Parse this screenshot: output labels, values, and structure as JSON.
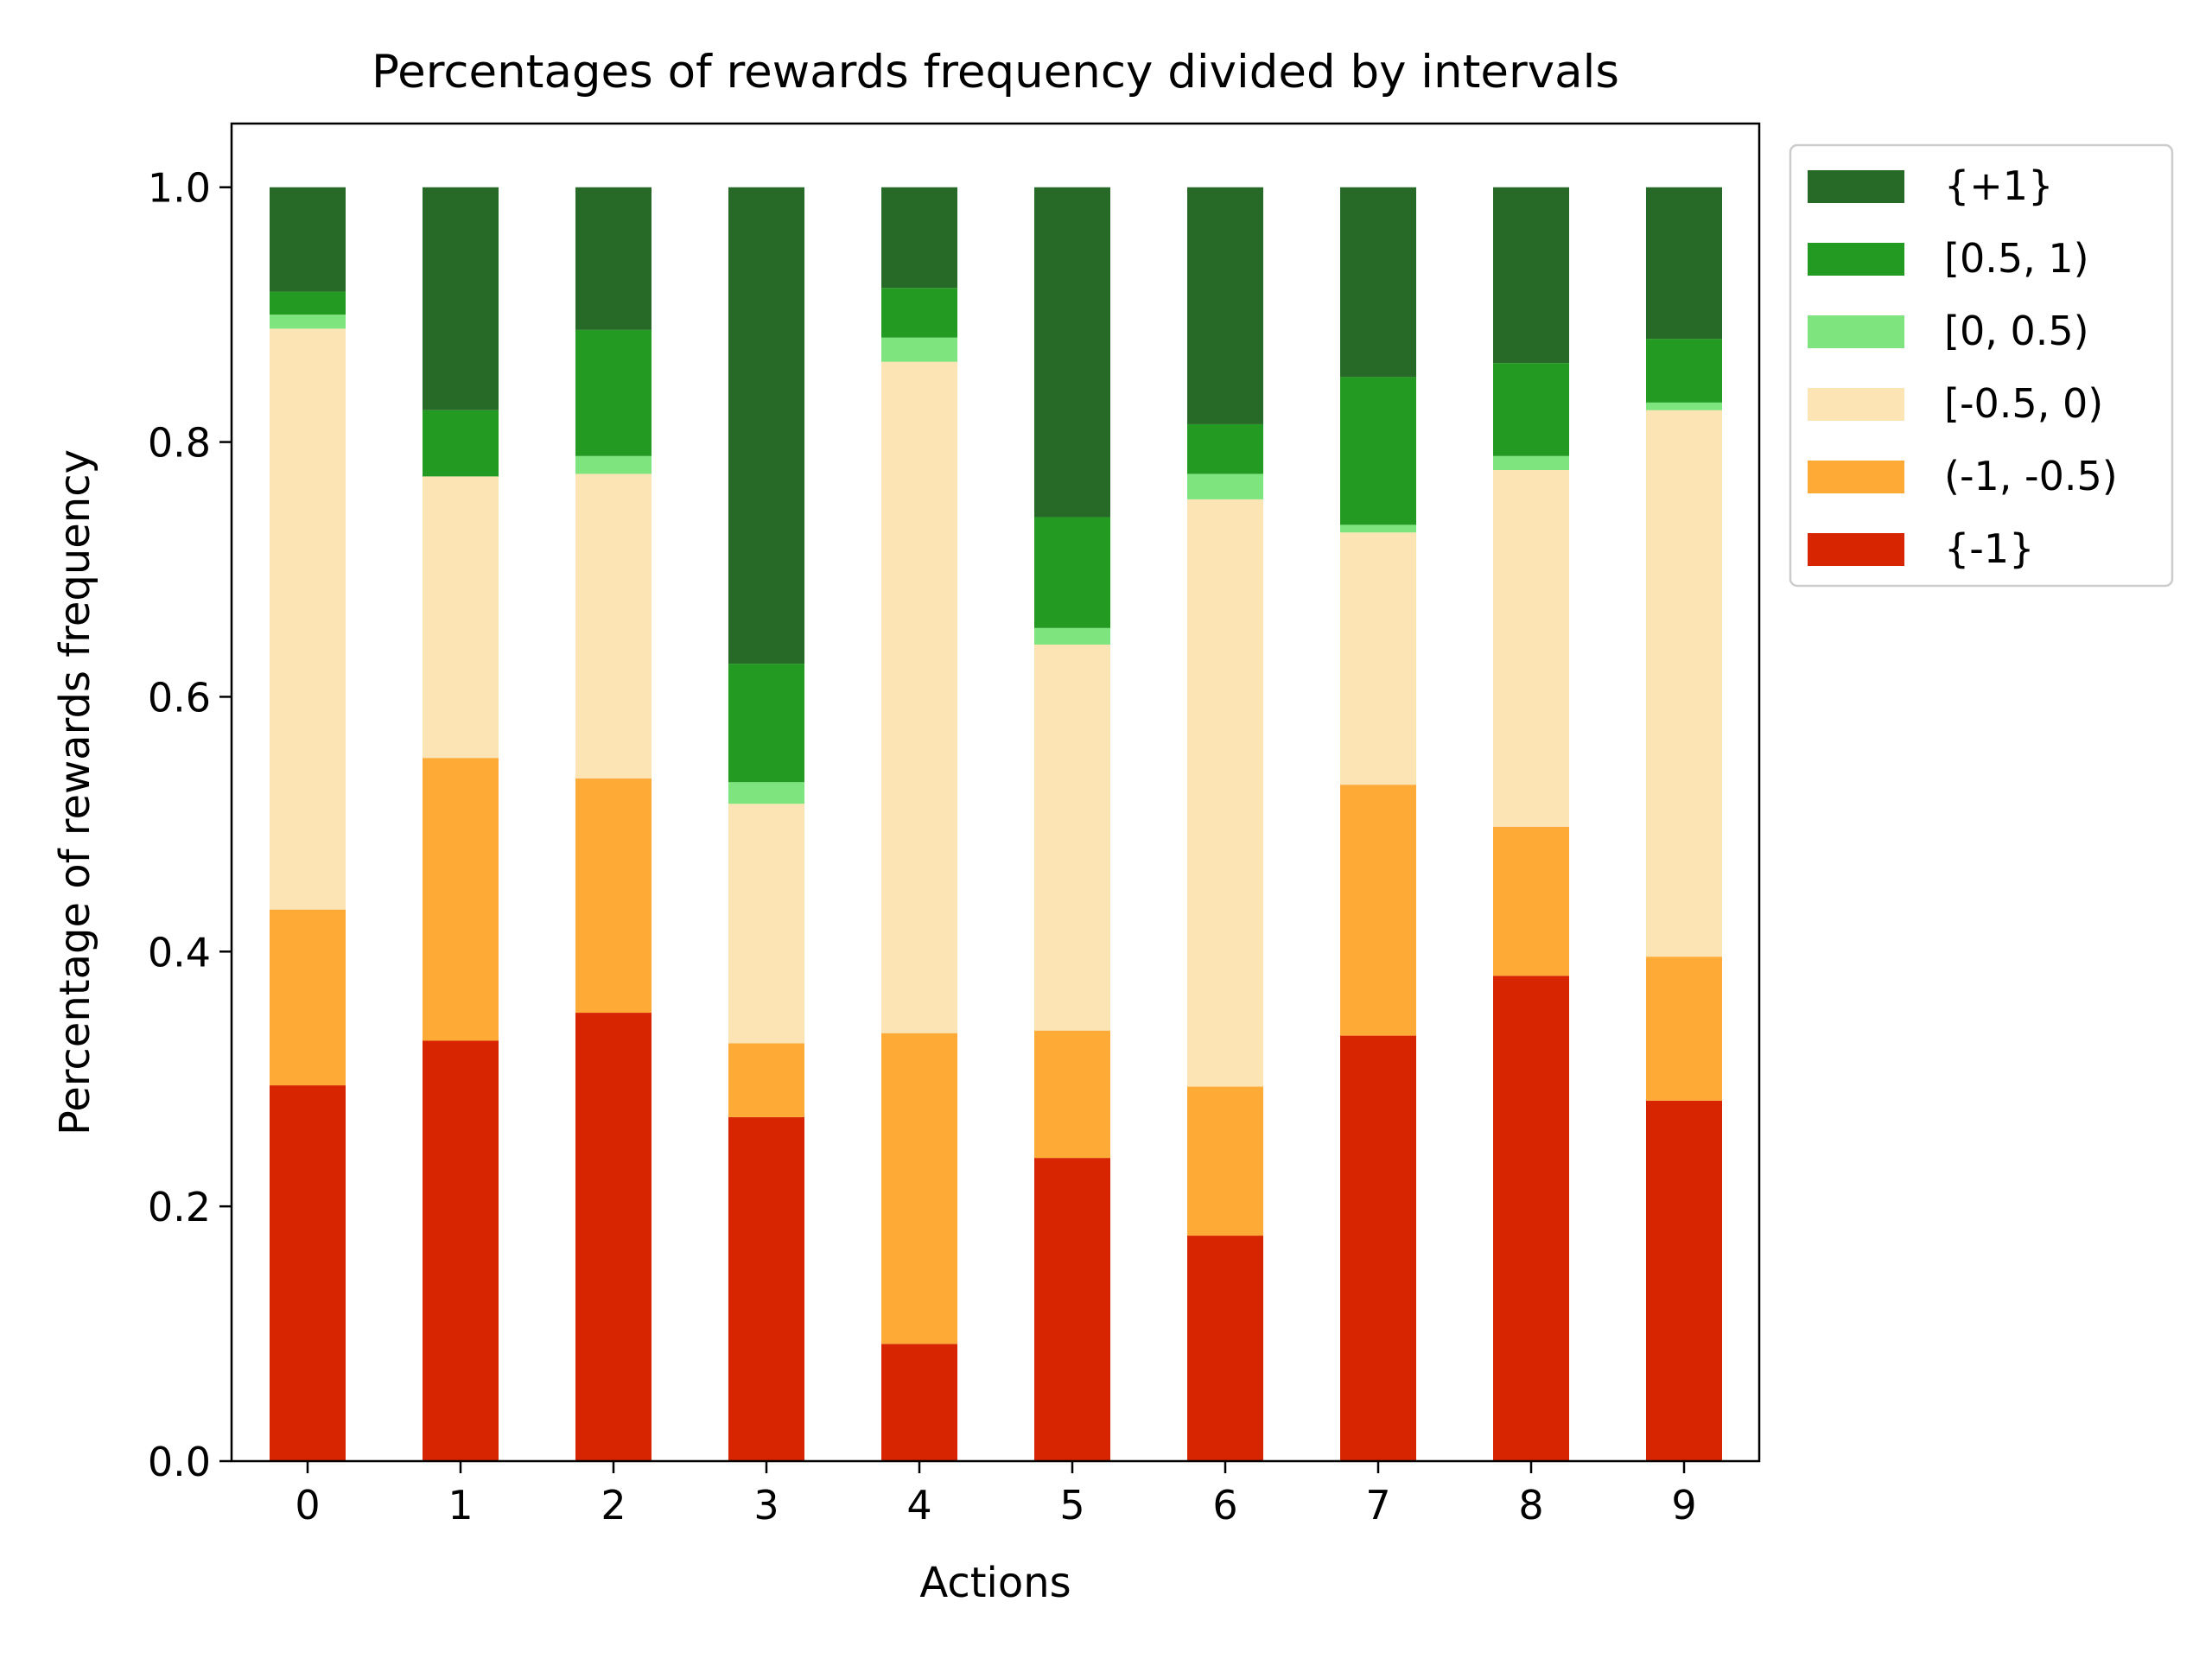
{
  "chart_data": {
    "type": "bar",
    "stacked": true,
    "title": "Percentages of rewards frequency divided by intervals",
    "xlabel": "Actions",
    "ylabel": "Percentage of rewards frequency",
    "ylim": [
      0,
      1.05
    ],
    "yticks": [
      "0.0",
      "0.2",
      "0.4",
      "0.6",
      "0.8",
      "1.0"
    ],
    "categories": [
      "0",
      "1",
      "2",
      "3",
      "4",
      "5",
      "6",
      "7",
      "8",
      "9"
    ],
    "legend_position": "outside-top-right",
    "grid": false,
    "series": [
      {
        "name": "{-1}",
        "color": "#d62500",
        "values": [
          0.295,
          0.33,
          0.352,
          0.27,
          0.092,
          0.238,
          0.177,
          0.334,
          0.381,
          0.283
        ]
      },
      {
        "name": "(-1, -0.5)",
        "color": "#fdaa36",
        "values": [
          0.138,
          0.222,
          0.184,
          0.058,
          0.244,
          0.1,
          0.117,
          0.197,
          0.117,
          0.113
        ]
      },
      {
        "name": "[-0.5, 0)",
        "color": "#fde4b4",
        "values": [
          0.456,
          0.221,
          0.239,
          0.188,
          0.527,
          0.303,
          0.461,
          0.198,
          0.28,
          0.429
        ]
      },
      {
        "name": "[0, 0.5)",
        "color": "#7ee57e",
        "values": [
          0.011,
          0.0,
          0.014,
          0.017,
          0.019,
          0.013,
          0.02,
          0.006,
          0.011,
          0.006
        ]
      },
      {
        "name": "[0.5, 1)",
        "color": "#239b23",
        "values": [
          0.018,
          0.052,
          0.099,
          0.093,
          0.039,
          0.087,
          0.039,
          0.116,
          0.073,
          0.05
        ]
      },
      {
        "name": "{+1}",
        "color": "#276927",
        "values": [
          0.082,
          0.175,
          0.112,
          0.374,
          0.079,
          0.259,
          0.186,
          0.149,
          0.138,
          0.119
        ]
      }
    ]
  }
}
